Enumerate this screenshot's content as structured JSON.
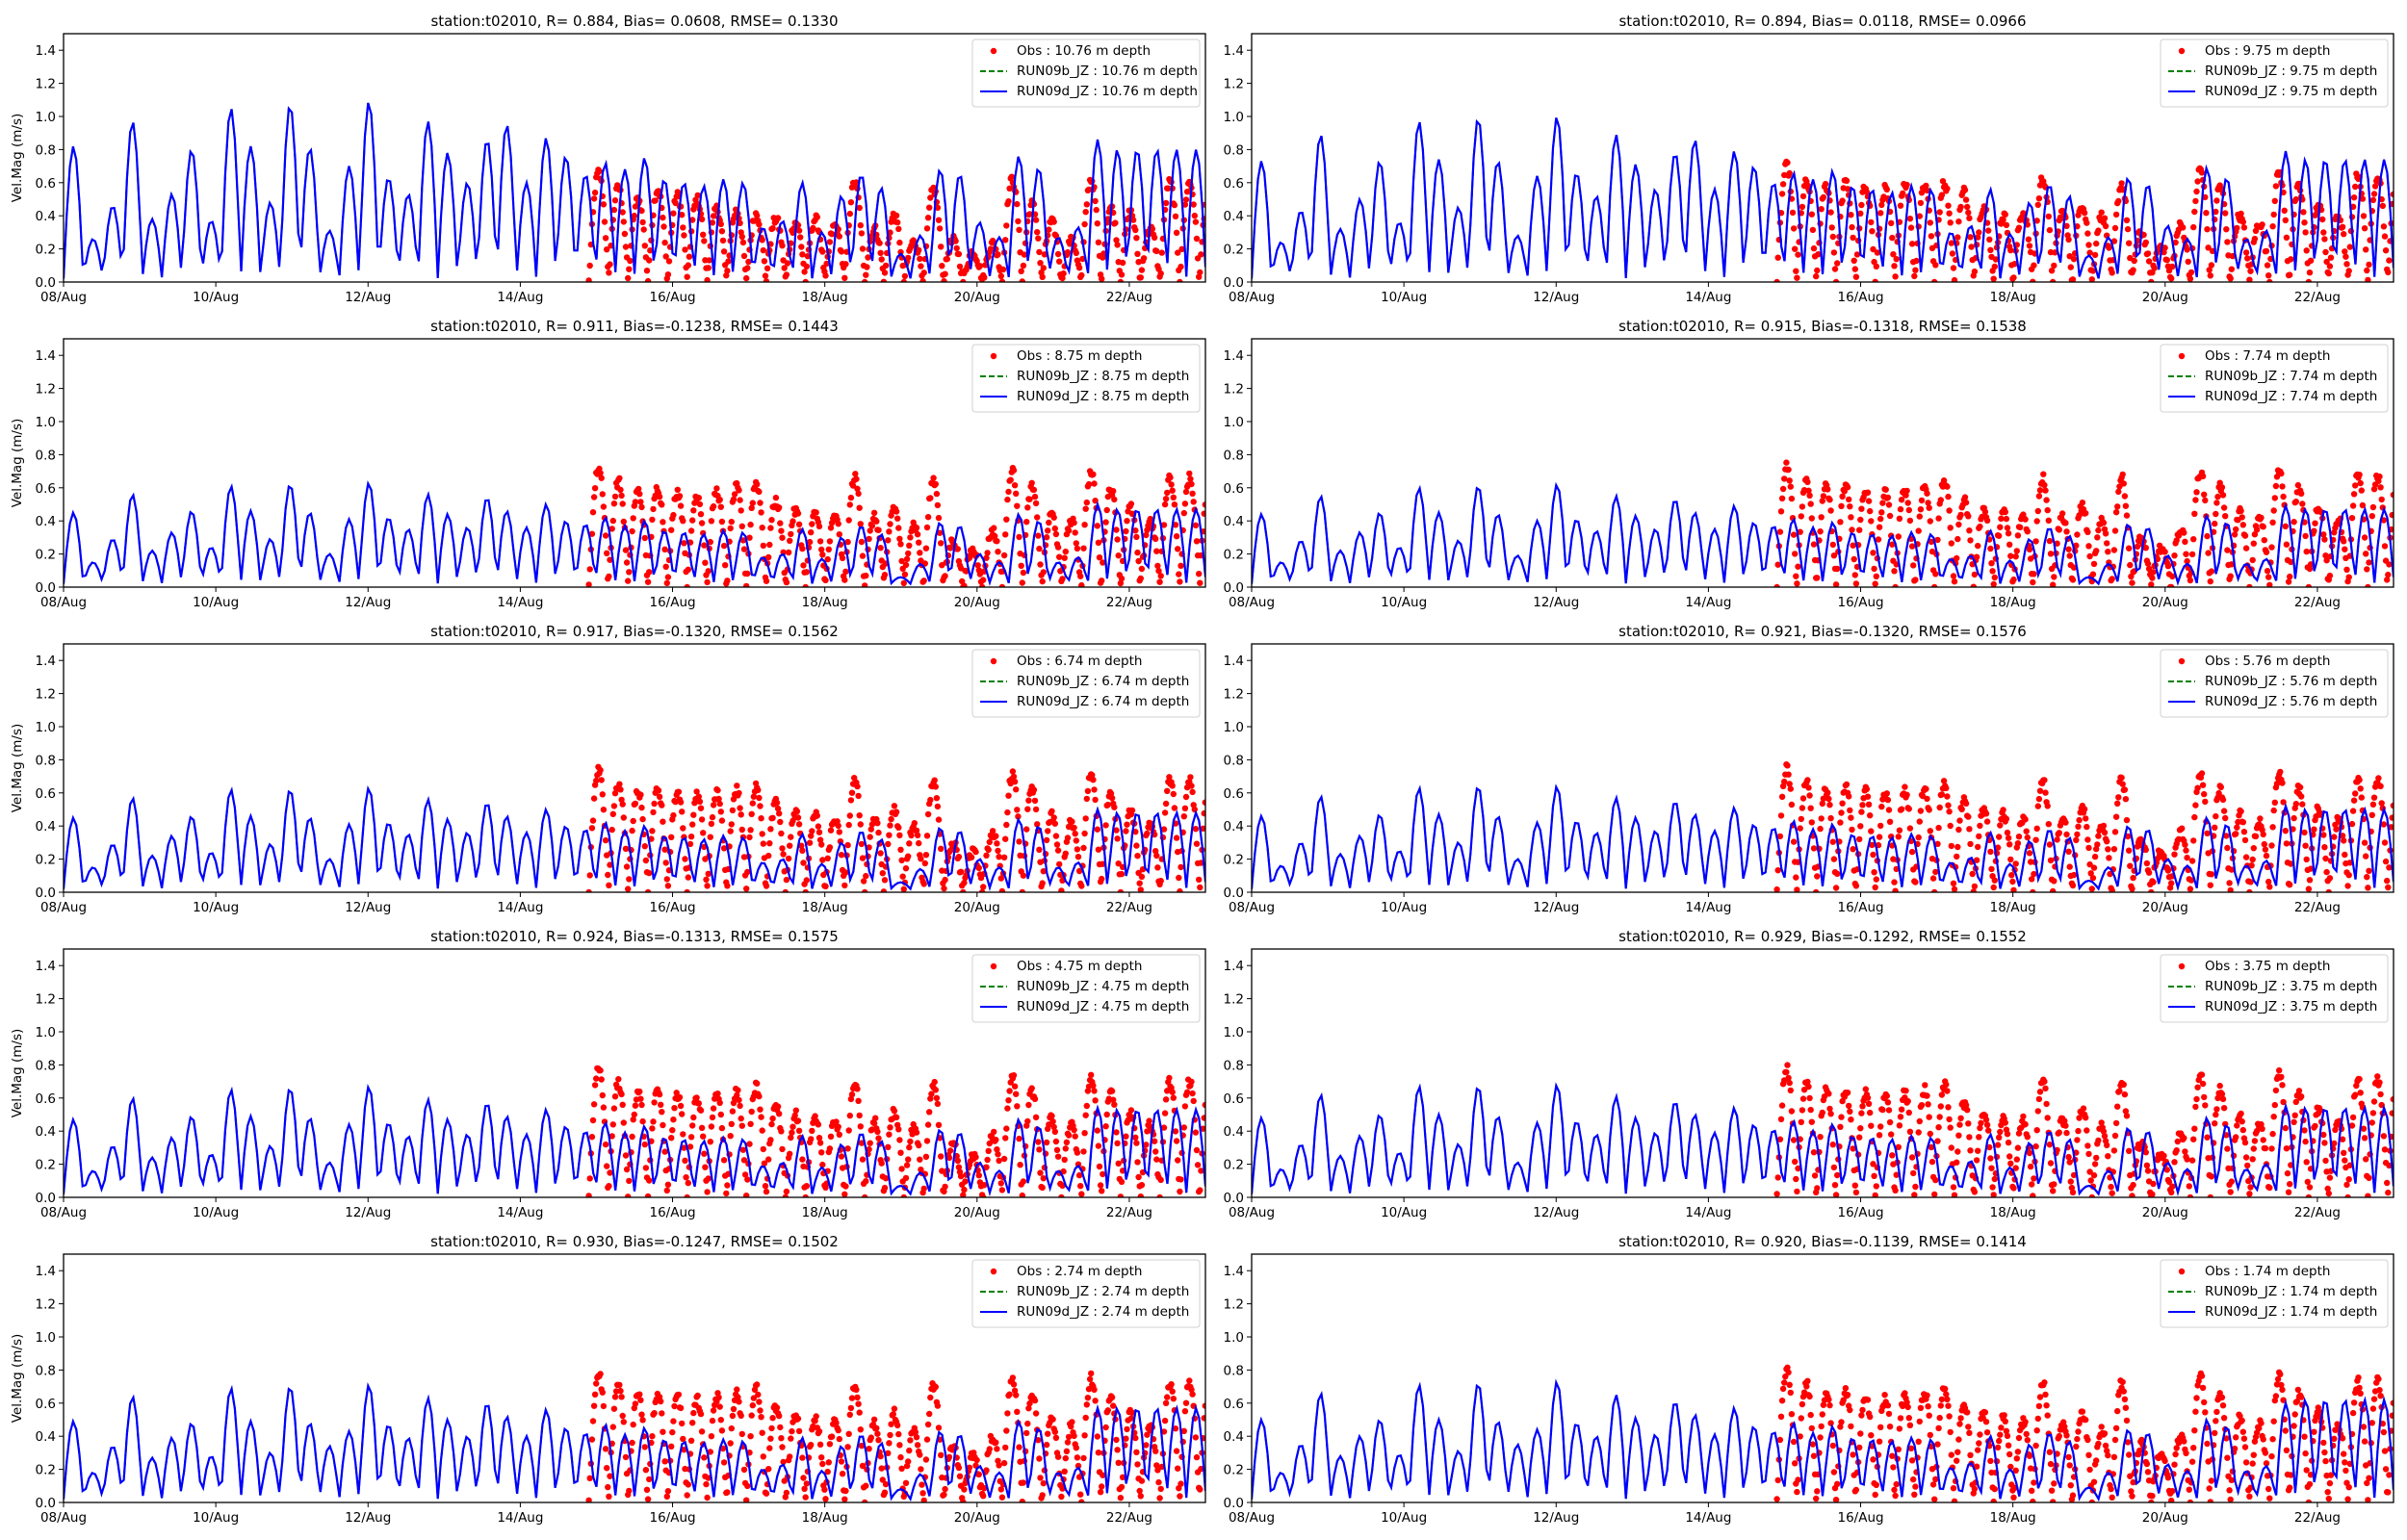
{
  "chart_data": {
    "type": "scatter",
    "figure_layout": "5 rows x 2 columns",
    "shared": {
      "xlabel": "",
      "ylabel": "Vel.Mag (m/s)",
      "ylabel_on": "left column only",
      "ylim": [
        0,
        1.5
      ],
      "yticks": [
        0.0,
        0.2,
        0.4,
        0.6,
        0.8,
        1.0,
        1.2,
        1.4
      ],
      "ytick_labels": [
        "0.0",
        "0.2",
        "0.4",
        "0.6",
        "0.8",
        "1.0",
        "1.2",
        "1.4"
      ],
      "xlim_days_from_08Aug": [
        0,
        15
      ],
      "xtick_days_from_08Aug": [
        0,
        2,
        4,
        6,
        8,
        10,
        12,
        14
      ],
      "xtick_labels": [
        "08/Aug",
        "10/Aug",
        "12/Aug",
        "14/Aug",
        "16/Aug",
        "18/Aug",
        "20/Aug",
        "22/Aug"
      ],
      "grid": false,
      "legend_placement": "top-right",
      "tidal_period_hours": 12.42,
      "obs_start_day": 6.9,
      "colors": {
        "obs": "#ff0000",
        "run09b": "#008000",
        "run09d": "#0000ff"
      }
    },
    "panels": [
      {
        "title": "station:t02010, R= 0.884, Bias= 0.0608, RMSE= 0.1330",
        "depth": "10.76",
        "legend": [
          "Obs : 10.76 m depth",
          "RUN09b_JZ : 10.76 m depth",
          "RUN09d_JZ : 10.76 m depth"
        ],
        "model_peaks": [
          0.82,
          0.26,
          0.46,
          0.97,
          0.38,
          0.53,
          0.8,
          0.37,
          1.05,
          0.82,
          0.48,
          1.07,
          0.81,
          0.31,
          0.7,
          1.09,
          0.63,
          0.53,
          0.97,
          0.78,
          0.6,
          0.86,
          0.95,
          0.6,
          0.87,
          0.76,
          0.65,
          0.72,
          0.68,
          0.75,
          0.62,
          0.6,
          0.58,
          0.62,
          0.6,
          0.33,
          0.37,
          0.6,
          0.3,
          0.52,
          0.65,
          0.57,
          0.17,
          0.28,
          0.68,
          0.65,
          0.36,
          0.27,
          0.76,
          0.69,
          0.27,
          0.33,
          0.86,
          0.8
        ],
        "obs_peaks": [
          0.66,
          0.57,
          0.5,
          0.56,
          0.52,
          0.5,
          0.44,
          0.43,
          0.41,
          0.38,
          0.36,
          0.38,
          0.34,
          0.6,
          0.32,
          0.4,
          0.24,
          0.56,
          0.25,
          0.18,
          0.23,
          0.62,
          0.47,
          0.36,
          0.25,
          0.62,
          0.45,
          0.42,
          0.32,
          0.6
        ]
      },
      {
        "title": "station:t02010, R= 0.894, Bias= 0.0118, RMSE= 0.0966",
        "depth": "9.75",
        "legend": [
          "Obs : 9.75 m depth",
          "RUN09b_JZ : 9.75 m depth",
          "RUN09d_JZ : 9.75 m depth"
        ],
        "model_peaks": [
          0.73,
          0.24,
          0.43,
          0.89,
          0.32,
          0.5,
          0.73,
          0.36,
          0.97,
          0.74,
          0.45,
          0.99,
          0.73,
          0.28,
          0.64,
          1.0,
          0.66,
          0.52,
          0.89,
          0.71,
          0.56,
          0.78,
          0.86,
          0.56,
          0.79,
          0.7,
          0.6,
          0.66,
          0.62,
          0.67,
          0.58,
          0.56,
          0.54,
          0.58,
          0.56,
          0.3,
          0.34,
          0.56,
          0.29,
          0.48,
          0.59,
          0.52,
          0.16,
          0.27,
          0.63,
          0.59,
          0.34,
          0.26,
          0.69,
          0.63,
          0.26,
          0.31,
          0.79,
          0.74
        ],
        "obs_peaks": [
          0.7,
          0.6,
          0.58,
          0.6,
          0.58,
          0.56,
          0.6,
          0.59,
          0.6,
          0.55,
          0.46,
          0.4,
          0.42,
          0.63,
          0.42,
          0.47,
          0.4,
          0.59,
          0.3,
          0.22,
          0.34,
          0.68,
          0.58,
          0.4,
          0.36,
          0.66,
          0.57,
          0.46,
          0.4,
          0.65
        ]
      },
      {
        "title": "station:t02010, R= 0.911, Bias=-0.1238, RMSE= 0.1443",
        "depth": "8.75",
        "legend": [
          "Obs : 8.75 m depth",
          "RUN09b_JZ : 8.75 m depth",
          "RUN09d_JZ : 8.75 m depth"
        ],
        "model_peaks": [
          0.45,
          0.15,
          0.29,
          0.56,
          0.22,
          0.33,
          0.46,
          0.24,
          0.61,
          0.46,
          0.29,
          0.62,
          0.45,
          0.2,
          0.41,
          0.63,
          0.42,
          0.35,
          0.56,
          0.44,
          0.36,
          0.54,
          0.46,
          0.36,
          0.5,
          0.4,
          0.38,
          0.42,
          0.37,
          0.4,
          0.34,
          0.33,
          0.32,
          0.34,
          0.33,
          0.18,
          0.2,
          0.35,
          0.17,
          0.3,
          0.37,
          0.32,
          0.06,
          0.14,
          0.39,
          0.37,
          0.2,
          0.15,
          0.44,
          0.4,
          0.15,
          0.18,
          0.5,
          0.47
        ],
        "obs_peaks": [
          0.72,
          0.64,
          0.58,
          0.6,
          0.58,
          0.56,
          0.58,
          0.6,
          0.63,
          0.52,
          0.46,
          0.44,
          0.42,
          0.66,
          0.42,
          0.48,
          0.38,
          0.65,
          0.28,
          0.22,
          0.34,
          0.7,
          0.6,
          0.44,
          0.4,
          0.69,
          0.6,
          0.48,
          0.4,
          0.66
        ]
      },
      {
        "title": "station:t02010, R= 0.915, Bias=-0.1318, RMSE= 0.1538",
        "depth": "7.74",
        "legend": [
          "Obs : 7.74 m depth",
          "RUN09b_JZ : 7.74 m depth",
          "RUN09d_JZ : 7.74 m depth"
        ],
        "model_peaks": [
          0.44,
          0.15,
          0.28,
          0.55,
          0.22,
          0.33,
          0.45,
          0.24,
          0.6,
          0.45,
          0.28,
          0.61,
          0.44,
          0.19,
          0.4,
          0.62,
          0.41,
          0.34,
          0.55,
          0.43,
          0.35,
          0.53,
          0.45,
          0.35,
          0.49,
          0.39,
          0.37,
          0.41,
          0.36,
          0.39,
          0.33,
          0.32,
          0.31,
          0.33,
          0.32,
          0.17,
          0.19,
          0.34,
          0.16,
          0.29,
          0.36,
          0.31,
          0.06,
          0.14,
          0.38,
          0.36,
          0.19,
          0.14,
          0.43,
          0.39,
          0.14,
          0.17,
          0.49,
          0.47
        ],
        "obs_peaks": [
          0.73,
          0.65,
          0.6,
          0.61,
          0.59,
          0.57,
          0.59,
          0.61,
          0.64,
          0.53,
          0.47,
          0.45,
          0.43,
          0.66,
          0.43,
          0.49,
          0.39,
          0.66,
          0.29,
          0.23,
          0.35,
          0.7,
          0.61,
          0.45,
          0.41,
          0.7,
          0.6,
          0.49,
          0.41,
          0.67
        ]
      },
      {
        "title": "station:t02010, R= 0.917, Bias=-0.1320, RMSE= 0.1562",
        "depth": "6.74",
        "legend": [
          "Obs : 6.74 m depth",
          "RUN09b_JZ : 6.74 m depth",
          "RUN09d_JZ : 6.74 m depth"
        ],
        "model_peaks": [
          0.45,
          0.15,
          0.29,
          0.57,
          0.22,
          0.34,
          0.46,
          0.24,
          0.62,
          0.46,
          0.29,
          0.62,
          0.45,
          0.2,
          0.41,
          0.63,
          0.42,
          0.35,
          0.56,
          0.44,
          0.36,
          0.54,
          0.46,
          0.36,
          0.5,
          0.4,
          0.38,
          0.42,
          0.37,
          0.4,
          0.34,
          0.33,
          0.32,
          0.34,
          0.33,
          0.18,
          0.2,
          0.35,
          0.17,
          0.3,
          0.37,
          0.32,
          0.06,
          0.14,
          0.39,
          0.37,
          0.2,
          0.15,
          0.44,
          0.4,
          0.15,
          0.18,
          0.5,
          0.48
        ],
        "obs_peaks": [
          0.74,
          0.66,
          0.61,
          0.62,
          0.6,
          0.58,
          0.6,
          0.62,
          0.65,
          0.54,
          0.48,
          0.46,
          0.44,
          0.67,
          0.44,
          0.5,
          0.4,
          0.67,
          0.3,
          0.24,
          0.36,
          0.71,
          0.62,
          0.46,
          0.42,
          0.71,
          0.61,
          0.5,
          0.42,
          0.68
        ]
      },
      {
        "title": "station:t02010, R= 0.921, Bias=-0.1320, RMSE= 0.1576",
        "depth": "5.76",
        "legend": [
          "Obs : 5.76 m depth",
          "RUN09b_JZ : 5.76 m depth",
          "RUN09d_JZ : 5.76 m depth"
        ],
        "model_peaks": [
          0.46,
          0.16,
          0.3,
          0.58,
          0.23,
          0.34,
          0.47,
          0.25,
          0.63,
          0.47,
          0.3,
          0.64,
          0.46,
          0.2,
          0.42,
          0.64,
          0.43,
          0.36,
          0.57,
          0.45,
          0.37,
          0.55,
          0.47,
          0.37,
          0.51,
          0.41,
          0.39,
          0.43,
          0.38,
          0.41,
          0.35,
          0.34,
          0.33,
          0.35,
          0.34,
          0.18,
          0.21,
          0.36,
          0.17,
          0.31,
          0.38,
          0.33,
          0.07,
          0.15,
          0.4,
          0.38,
          0.2,
          0.16,
          0.45,
          0.41,
          0.16,
          0.19,
          0.52,
          0.5
        ],
        "obs_peaks": [
          0.75,
          0.67,
          0.62,
          0.63,
          0.61,
          0.59,
          0.61,
          0.63,
          0.66,
          0.55,
          0.49,
          0.47,
          0.45,
          0.68,
          0.45,
          0.51,
          0.41,
          0.68,
          0.31,
          0.25,
          0.37,
          0.72,
          0.63,
          0.47,
          0.43,
          0.72,
          0.62,
          0.51,
          0.43,
          0.69
        ]
      },
      {
        "title": "station:t02010, R= 0.924, Bias=-0.1313, RMSE= 0.1575",
        "depth": "4.75",
        "legend": [
          "Obs : 4.75 m depth",
          "RUN09b_JZ : 4.75 m depth",
          "RUN09d_JZ : 4.75 m depth"
        ],
        "model_peaks": [
          0.47,
          0.16,
          0.31,
          0.6,
          0.24,
          0.36,
          0.49,
          0.26,
          0.65,
          0.49,
          0.31,
          0.66,
          0.48,
          0.21,
          0.44,
          0.67,
          0.45,
          0.37,
          0.59,
          0.47,
          0.38,
          0.57,
          0.49,
          0.38,
          0.53,
          0.43,
          0.4,
          0.45,
          0.39,
          0.43,
          0.36,
          0.35,
          0.34,
          0.36,
          0.35,
          0.19,
          0.21,
          0.37,
          0.18,
          0.32,
          0.39,
          0.34,
          0.07,
          0.15,
          0.41,
          0.39,
          0.21,
          0.16,
          0.47,
          0.43,
          0.16,
          0.19,
          0.54,
          0.53
        ],
        "obs_peaks": [
          0.77,
          0.69,
          0.64,
          0.64,
          0.62,
          0.6,
          0.62,
          0.64,
          0.67,
          0.56,
          0.5,
          0.48,
          0.46,
          0.69,
          0.46,
          0.52,
          0.42,
          0.69,
          0.32,
          0.26,
          0.38,
          0.73,
          0.64,
          0.48,
          0.44,
          0.73,
          0.63,
          0.52,
          0.44,
          0.7
        ]
      },
      {
        "title": "station:t02010, R= 0.929, Bias=-0.1292, RMSE= 0.1552",
        "depth": "3.75",
        "legend": [
          "Obs : 3.75 m depth",
          "RUN09b_JZ : 3.75 m depth",
          "RUN09d_JZ : 3.75 m depth"
        ],
        "model_peaks": [
          0.48,
          0.17,
          0.32,
          0.62,
          0.25,
          0.37,
          0.5,
          0.27,
          0.67,
          0.5,
          0.32,
          0.67,
          0.49,
          0.21,
          0.45,
          0.68,
          0.46,
          0.38,
          0.61,
          0.48,
          0.39,
          0.58,
          0.5,
          0.39,
          0.54,
          0.44,
          0.41,
          0.46,
          0.4,
          0.44,
          0.37,
          0.36,
          0.35,
          0.37,
          0.36,
          0.19,
          0.22,
          0.38,
          0.18,
          0.33,
          0.4,
          0.35,
          0.07,
          0.16,
          0.42,
          0.4,
          0.21,
          0.17,
          0.48,
          0.44,
          0.17,
          0.2,
          0.55,
          0.54
        ],
        "obs_peaks": [
          0.78,
          0.7,
          0.65,
          0.65,
          0.63,
          0.61,
          0.63,
          0.65,
          0.68,
          0.57,
          0.51,
          0.49,
          0.47,
          0.7,
          0.47,
          0.53,
          0.43,
          0.7,
          0.33,
          0.27,
          0.39,
          0.74,
          0.65,
          0.49,
          0.45,
          0.74,
          0.64,
          0.53,
          0.45,
          0.71
        ]
      },
      {
        "title": "station:t02010, R= 0.930, Bias=-0.1247, RMSE= 0.1502",
        "depth": "2.74",
        "legend": [
          "Obs : 2.74 m depth",
          "RUN09b_JZ : 2.74 m depth",
          "RUN09d_JZ : 2.74 m depth"
        ],
        "model_peaks": [
          0.49,
          0.18,
          0.34,
          0.64,
          0.27,
          0.39,
          0.48,
          0.28,
          0.69,
          0.49,
          0.3,
          0.7,
          0.48,
          0.34,
          0.43,
          0.71,
          0.47,
          0.39,
          0.63,
          0.5,
          0.4,
          0.6,
          0.52,
          0.4,
          0.56,
          0.45,
          0.42,
          0.47,
          0.41,
          0.45,
          0.38,
          0.37,
          0.36,
          0.38,
          0.37,
          0.2,
          0.23,
          0.39,
          0.19,
          0.34,
          0.41,
          0.36,
          0.08,
          0.17,
          0.43,
          0.41,
          0.22,
          0.18,
          0.49,
          0.45,
          0.18,
          0.21,
          0.57,
          0.57
        ],
        "obs_peaks": [
          0.79,
          0.71,
          0.66,
          0.66,
          0.64,
          0.62,
          0.64,
          0.66,
          0.69,
          0.58,
          0.52,
          0.5,
          0.48,
          0.71,
          0.48,
          0.54,
          0.44,
          0.71,
          0.34,
          0.28,
          0.4,
          0.75,
          0.66,
          0.5,
          0.46,
          0.75,
          0.65,
          0.54,
          0.46,
          0.72
        ]
      },
      {
        "title": "station:t02010, R= 0.920, Bias=-0.1139, RMSE= 0.1414",
        "depth": "1.74",
        "legend": [
          "Obs : 1.74 m depth",
          "RUN09b_JZ : 1.74 m depth",
          "RUN09d_JZ : 1.74 m depth"
        ],
        "model_peaks": [
          0.5,
          0.18,
          0.35,
          0.66,
          0.28,
          0.4,
          0.5,
          0.29,
          0.71,
          0.5,
          0.31,
          0.72,
          0.49,
          0.35,
          0.44,
          0.73,
          0.48,
          0.4,
          0.65,
          0.51,
          0.41,
          0.61,
          0.53,
          0.41,
          0.57,
          0.46,
          0.43,
          0.48,
          0.42,
          0.46,
          0.39,
          0.38,
          0.37,
          0.39,
          0.38,
          0.21,
          0.24,
          0.4,
          0.2,
          0.35,
          0.42,
          0.37,
          0.09,
          0.18,
          0.44,
          0.42,
          0.23,
          0.19,
          0.5,
          0.46,
          0.19,
          0.22,
          0.6,
          0.62
        ],
        "obs_peaks": [
          0.8,
          0.72,
          0.67,
          0.67,
          0.65,
          0.63,
          0.65,
          0.67,
          0.7,
          0.59,
          0.53,
          0.51,
          0.49,
          0.72,
          0.49,
          0.55,
          0.45,
          0.72,
          0.35,
          0.29,
          0.41,
          0.76,
          0.67,
          0.51,
          0.47,
          0.76,
          0.66,
          0.55,
          0.47,
          0.73
        ]
      }
    ]
  }
}
